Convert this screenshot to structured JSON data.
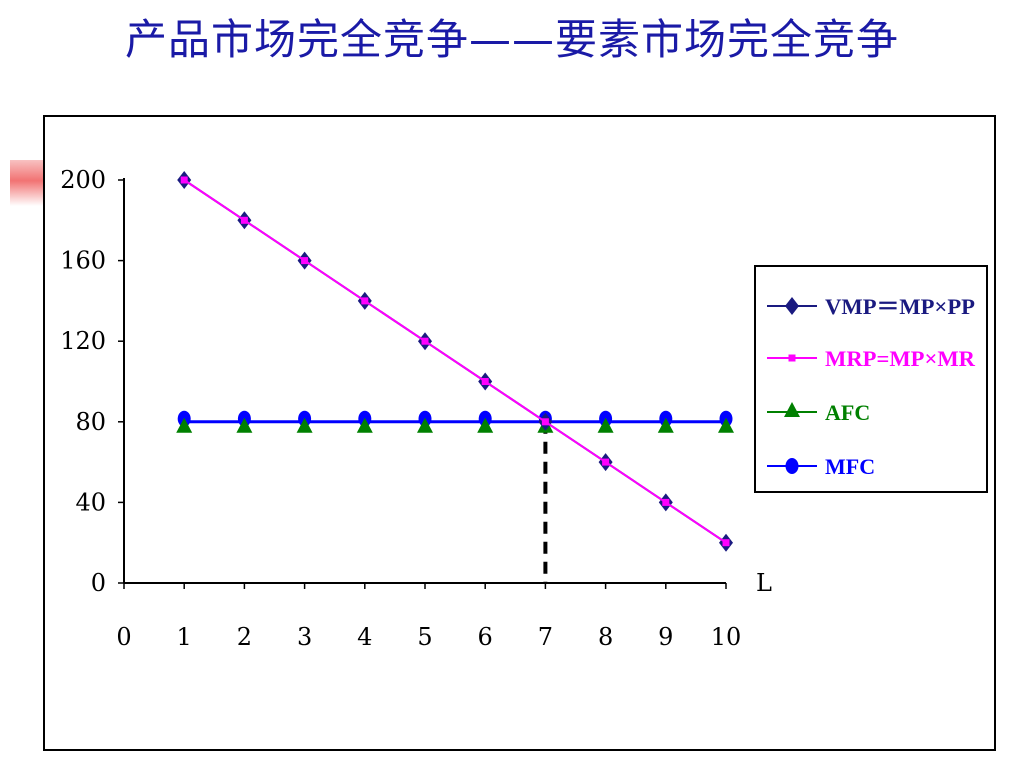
{
  "slide": {
    "title": "产品市场完全竞争——要素市场完全竞争"
  },
  "chart_data": {
    "type": "line",
    "x": [
      1,
      2,
      3,
      4,
      5,
      6,
      7,
      8,
      9,
      10
    ],
    "x_ticks": [
      "0",
      "1",
      "2",
      "3",
      "4",
      "5",
      "6",
      "7",
      "8",
      "9",
      "10"
    ],
    "y_ticks": [
      "0",
      "40",
      "80",
      "120",
      "160",
      "200"
    ],
    "xlabel": "L",
    "ylabel": "",
    "xlim": [
      0,
      10
    ],
    "ylim": [
      0,
      200
    ],
    "grid": false,
    "legend_position": "right",
    "series": [
      {
        "name": "VMP＝MP×PP",
        "values": [
          200,
          180,
          160,
          140,
          120,
          100,
          80,
          60,
          40,
          20
        ],
        "color": "#1a1a80",
        "marker": "diamond"
      },
      {
        "name": "MRP=MP×MR",
        "values": [
          200,
          180,
          160,
          140,
          120,
          100,
          80,
          60,
          40,
          20
        ],
        "color": "#ff00ff",
        "marker": "square"
      },
      {
        "name": "AFC",
        "values": [
          80,
          80,
          80,
          80,
          80,
          80,
          80,
          80,
          80,
          80
        ],
        "color": "#008000",
        "marker": "triangle"
      },
      {
        "name": "MFC",
        "values": [
          80,
          80,
          80,
          80,
          80,
          80,
          80,
          80,
          80,
          80
        ],
        "color": "#0000ff",
        "marker": "circle"
      }
    ],
    "annotations": [
      {
        "type": "vertical-dashed-line",
        "x": 7,
        "from_y": 0,
        "to_y": 80,
        "color": "#000000"
      }
    ]
  }
}
